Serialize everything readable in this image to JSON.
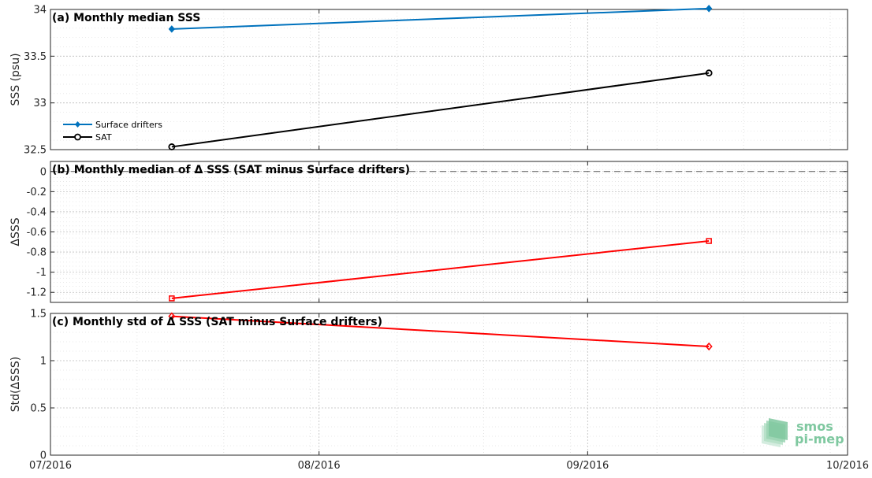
{
  "chart_data": [
    {
      "type": "line",
      "title": "(a) Monthly median SSS",
      "xlabel": "",
      "ylabel": "SSS (psu)",
      "xlim": [
        "2016-07-01",
        "2016-10-01"
      ],
      "ylim": [
        32.5,
        34
      ],
      "yticks": [
        32.5,
        33,
        33.5,
        34
      ],
      "ytick_labels": [
        "32.5",
        "33",
        "33.5",
        "34"
      ],
      "grid": true,
      "legend_position": "lower-left",
      "series": [
        {
          "name": "Surface drifters",
          "color": "#0072BD",
          "marker": "diamond-filled",
          "x": [
            "2016-07-15",
            "2016-09-15"
          ],
          "y": [
            33.79,
            34.01
          ]
        },
        {
          "name": "SAT",
          "color": "#000000",
          "marker": "circle-open",
          "x": [
            "2016-07-15",
            "2016-09-15"
          ],
          "y": [
            32.53,
            33.32
          ]
        }
      ]
    },
    {
      "type": "line",
      "title": "(b) Monthly median of Δ SSS (SAT minus Surface drifters)",
      "xlabel": "",
      "ylabel": "ΔSSS",
      "xlim": [
        "2016-07-01",
        "2016-10-01"
      ],
      "ylim": [
        -1.3,
        0.1
      ],
      "yticks": [
        0,
        -0.2,
        -0.4,
        -0.6,
        -0.8,
        -1,
        -1.2
      ],
      "ytick_labels": [
        "0",
        "-0.2",
        "-0.4",
        "-0.6",
        "-0.8",
        "-1",
        "-1.2"
      ],
      "grid": true,
      "reference_line": 0,
      "series": [
        {
          "color": "#FF0000",
          "marker": "square-open",
          "x": [
            "2016-07-15",
            "2016-09-15"
          ],
          "y": [
            -1.26,
            -0.69
          ]
        }
      ]
    },
    {
      "type": "line",
      "title": "(c) Monthly std of Δ SSS (SAT minus Surface drifters)",
      "xlabel": "",
      "ylabel": "Std(ΔSSS)",
      "xlim": [
        "2016-07-01",
        "2016-10-01"
      ],
      "ylim": [
        0,
        1.5
      ],
      "yticks": [
        0,
        0.5,
        1,
        1.5
      ],
      "ytick_labels": [
        "0",
        "0.5",
        "1",
        "1.5"
      ],
      "xticks": [
        "2016-07-01",
        "2016-08-01",
        "2016-09-01",
        "2016-10-01"
      ],
      "xtick_labels": [
        "07/2016",
        "08/2016",
        "09/2016",
        "10/2016"
      ],
      "grid": true,
      "series": [
        {
          "color": "#FF0000",
          "marker": "diamond-open",
          "x": [
            "2016-07-15",
            "2016-09-15"
          ],
          "y": [
            1.47,
            1.15
          ]
        }
      ]
    }
  ],
  "logo": {
    "line1": "smos",
    "line2": "pi-mep",
    "color": "#7fc8a0"
  }
}
